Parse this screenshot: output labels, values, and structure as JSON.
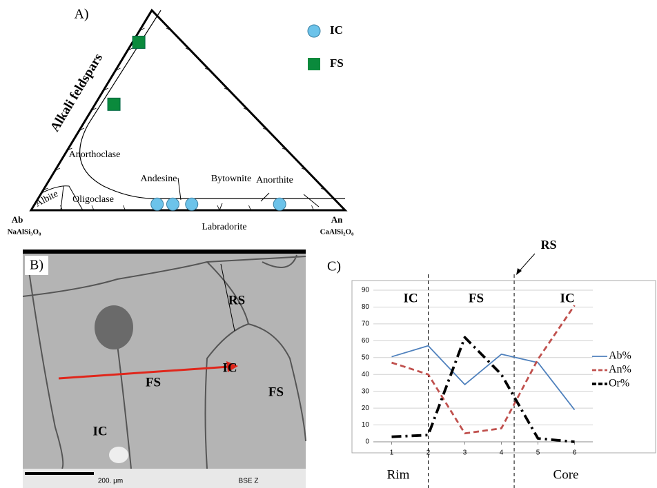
{
  "panel_a": {
    "label": "A)",
    "side_label": "Alkali feldspars",
    "vertices": [
      {
        "name": "Ab",
        "formula": "NaAlSi₃O₈"
      },
      {
        "name": "An",
        "formula": "CaAlSi₂O₈"
      }
    ],
    "fields": [
      "Anorthoclase",
      "Albite",
      "Oligoclase",
      "Andesine",
      "Bytownite",
      "Anorthite",
      "Labradorite"
    ],
    "series": [
      {
        "name": "IC",
        "color": "#6cc3ea",
        "an": [
          39,
          44,
          50,
          78
        ],
        "or": [
          3,
          3,
          3,
          3
        ]
      },
      {
        "name": "FS",
        "color": "#0a8a3c",
        "an": [
          2,
          6
        ],
        "or": [
          84,
          53
        ]
      }
    ]
  },
  "panel_b": {
    "label": "B)",
    "labels": [
      "RS",
      "FS",
      "IC",
      "FS",
      "IC"
    ],
    "scale": "200. μm",
    "detector": "BSE Z"
  },
  "chart_data": {
    "type": "line",
    "label": "C)",
    "x": [
      1,
      2,
      3,
      4,
      5,
      6
    ],
    "xlim": [
      0.5,
      6.5
    ],
    "xticks": [
      1,
      2,
      3,
      4,
      5,
      6
    ],
    "ylim": [
      0,
      90
    ],
    "yticks": [
      0,
      10,
      20,
      30,
      40,
      50,
      60,
      70,
      80,
      90
    ],
    "grid": true,
    "series": [
      {
        "name": "Ab%",
        "color": "#4f81bd",
        "style": "solid",
        "values": [
          50.5,
          57,
          34,
          52,
          47,
          19
        ]
      },
      {
        "name": "An%",
        "color": "#c0504d",
        "style": "dashed",
        "values": [
          47,
          40,
          5,
          8,
          49,
          81
        ]
      },
      {
        "name": "Or%",
        "color": "#000000",
        "style": "dashdot",
        "values": [
          3,
          4,
          62,
          40,
          2,
          0
        ]
      }
    ],
    "dividers": [
      2,
      4.35
    ],
    "annotations": [
      "IC",
      "FS",
      "IC",
      "RS",
      "Rim",
      "Core"
    ]
  }
}
